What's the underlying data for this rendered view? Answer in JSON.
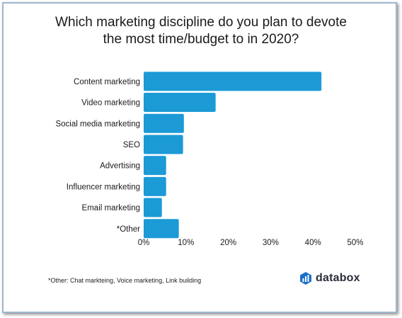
{
  "title_lines": [
    "Which marketing discipline do you plan to devote",
    "the most time/budget to in 2020?"
  ],
  "footnote": "*Other: Chat markteing, Voice marketing, Link building",
  "logo": {
    "text": "databox",
    "icon": "databox-logo-icon"
  },
  "colors": {
    "bar": "#1b9ad6",
    "axis": "#cccccc",
    "text": "#1a1a1a"
  },
  "chart_data": {
    "type": "bar",
    "orientation": "horizontal",
    "title": "Which marketing discipline do you plan to devote the most time/budget to in 2020?",
    "categories": [
      "Content marketing",
      "Video marketing",
      "Social media marketing",
      "SEO",
      "Advertising",
      "Influencer marketing",
      "Email marketing",
      "*Other"
    ],
    "values": [
      42,
      17,
      9.5,
      9.3,
      5.3,
      5.3,
      4.3,
      8.3
    ],
    "unit": "%",
    "xlim": [
      0,
      50
    ],
    "ticks": [
      "0%",
      "10%",
      "20%",
      "30%",
      "40%",
      "50%"
    ],
    "grid": false,
    "legend": "none"
  }
}
